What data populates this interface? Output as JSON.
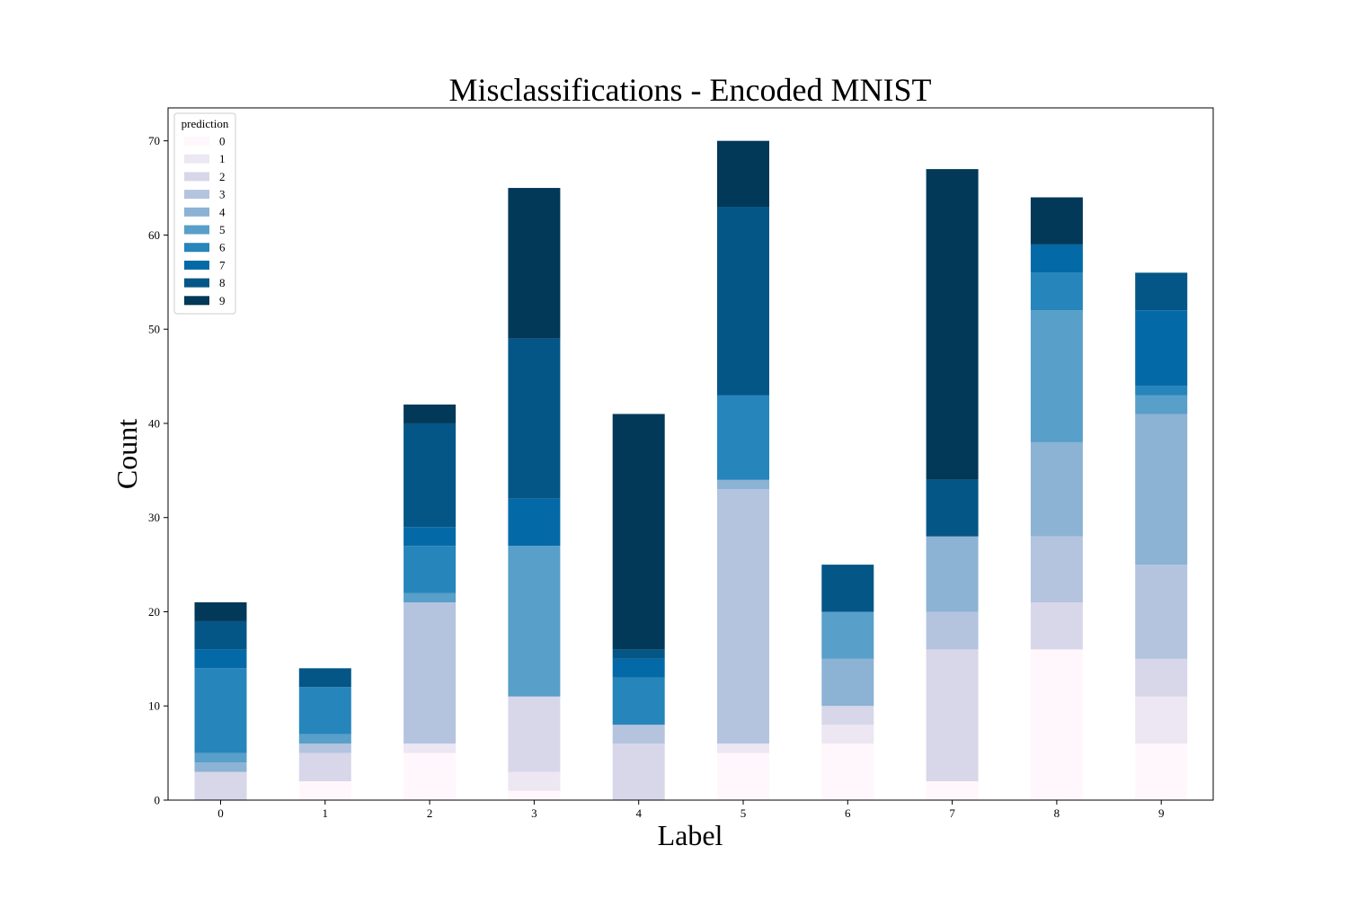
{
  "chart_data": {
    "type": "bar",
    "stacked": true,
    "title": "Misclassifications - Encoded MNIST",
    "xlabel": "Label",
    "ylabel": "Count",
    "categories": [
      "0",
      "1",
      "2",
      "3",
      "4",
      "5",
      "6",
      "7",
      "8",
      "9"
    ],
    "ylim": [
      0,
      73.5
    ],
    "yticks": [
      0,
      10,
      20,
      30,
      40,
      50,
      60,
      70
    ],
    "grid": false,
    "legend": {
      "title": "prediction",
      "placement": "top-left"
    },
    "series": [
      {
        "name": "0",
        "color": "#fff7fb",
        "values": [
          0,
          2,
          5,
          1,
          0,
          5,
          6,
          2,
          16,
          6
        ]
      },
      {
        "name": "1",
        "color": "#ece7f2",
        "values": [
          0,
          0,
          1,
          2,
          0,
          1,
          2,
          0,
          0,
          5
        ]
      },
      {
        "name": "2",
        "color": "#d7d7e9",
        "values": [
          3,
          3,
          0,
          8,
          6,
          0,
          2,
          14,
          5,
          4
        ]
      },
      {
        "name": "3",
        "color": "#b4c4df",
        "values": [
          0,
          1,
          15,
          0,
          2,
          27,
          0,
          4,
          7,
          10
        ]
      },
      {
        "name": "4",
        "color": "#8cb2d4",
        "values": [
          1,
          0,
          0,
          0,
          0,
          1,
          5,
          8,
          10,
          16
        ]
      },
      {
        "name": "5",
        "color": "#589fc9",
        "values": [
          1,
          1,
          1,
          16,
          0,
          0,
          5,
          0,
          14,
          2
        ]
      },
      {
        "name": "6",
        "color": "#2685bb",
        "values": [
          9,
          5,
          5,
          0,
          5,
          9,
          0,
          0,
          4,
          1
        ]
      },
      {
        "name": "7",
        "color": "#046aa7",
        "values": [
          2,
          0,
          2,
          5,
          2,
          0,
          0,
          0,
          3,
          8
        ]
      },
      {
        "name": "8",
        "color": "#045687",
        "values": [
          3,
          2,
          11,
          17,
          1,
          20,
          5,
          6,
          0,
          4
        ]
      },
      {
        "name": "9",
        "color": "#023858",
        "values": [
          2,
          0,
          2,
          16,
          25,
          7,
          0,
          33,
          5,
          0
        ]
      }
    ]
  }
}
